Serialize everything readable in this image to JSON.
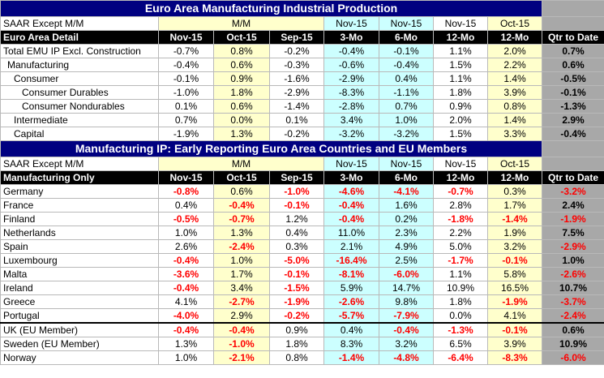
{
  "title1": "Euro Area Manufacturing Industrial Production",
  "title2": "Manufacturing IP: Early Reporting Euro Area Countries and EU Members",
  "sub_header": {
    "label": "SAAR Except M/M",
    "mm": "M/M",
    "c3a": "Nov-15",
    "c3b": "Nov-15",
    "c12a": "Nov-15",
    "c12b": "Oct-15"
  },
  "header1": {
    "label": "Euro Area Detail",
    "cols": [
      "Nov-15",
      "Oct-15",
      "Sep-15",
      "3-Mo",
      "6-Mo",
      "12-Mo",
      "12-Mo",
      "Qtr to Date"
    ]
  },
  "header2": {
    "label": "Manufacturing Only",
    "cols": [
      "Nov-15",
      "Oct-15",
      "Sep-15",
      "3-Mo",
      "6-Mo",
      "12-Mo",
      "12-Mo",
      "Qtr to Date"
    ]
  },
  "section1": [
    {
      "label": "Total EMU IP Excl. Construction",
      "indent": 0,
      "values": [
        "-0.7%",
        "0.8%",
        "-0.2%",
        "-0.4%",
        "-0.1%",
        "1.1%",
        "2.0%",
        "0.7%"
      ],
      "red": [
        false,
        false,
        false,
        false,
        false,
        false,
        false,
        false
      ]
    },
    {
      "label": "Manufacturing",
      "indent": 1,
      "values": [
        "-0.4%",
        "0.6%",
        "-0.3%",
        "-0.6%",
        "-0.4%",
        "1.5%",
        "2.2%",
        "0.6%"
      ],
      "red": [
        false,
        false,
        false,
        false,
        false,
        false,
        false,
        false
      ]
    },
    {
      "label": "Consumer",
      "indent": 2,
      "values": [
        "-0.1%",
        "0.9%",
        "-1.6%",
        "-2.9%",
        "0.4%",
        "1.1%",
        "1.4%",
        "-0.5%"
      ],
      "red": [
        false,
        false,
        false,
        false,
        false,
        false,
        false,
        false
      ]
    },
    {
      "label": "Consumer Durables",
      "indent": 3,
      "values": [
        "-1.0%",
        "1.8%",
        "-2.9%",
        "-8.3%",
        "-1.1%",
        "1.8%",
        "3.9%",
        "-0.1%"
      ],
      "red": [
        false,
        false,
        false,
        false,
        false,
        false,
        false,
        false
      ]
    },
    {
      "label": "Consumer Nondurables",
      "indent": 3,
      "values": [
        "0.1%",
        "0.6%",
        "-1.4%",
        "-2.8%",
        "0.7%",
        "0.9%",
        "0.8%",
        "-1.3%"
      ],
      "red": [
        false,
        false,
        false,
        false,
        false,
        false,
        false,
        false
      ]
    },
    {
      "label": "Intermediate",
      "indent": 2,
      "values": [
        "0.7%",
        "0.0%",
        "0.1%",
        "3.4%",
        "1.0%",
        "2.0%",
        "1.4%",
        "2.9%"
      ],
      "red": [
        false,
        false,
        false,
        false,
        false,
        false,
        false,
        false
      ]
    },
    {
      "label": "Capital",
      "indent": 2,
      "values": [
        "-1.9%",
        "1.3%",
        "-0.2%",
        "-3.2%",
        "-3.2%",
        "1.5%",
        "3.3%",
        "-0.4%"
      ],
      "red": [
        false,
        false,
        false,
        false,
        false,
        false,
        false,
        false
      ]
    }
  ],
  "section2": [
    {
      "label": "Germany",
      "values": [
        "-0.8%",
        "0.6%",
        "-1.0%",
        "-4.6%",
        "-4.1%",
        "-0.7%",
        "0.3%",
        "-3.2%"
      ],
      "red": [
        true,
        false,
        true,
        true,
        true,
        true,
        false,
        true
      ]
    },
    {
      "label": "France",
      "values": [
        "0.4%",
        "-0.4%",
        "-0.1%",
        "-0.4%",
        "1.6%",
        "2.8%",
        "1.7%",
        "2.4%"
      ],
      "red": [
        false,
        true,
        true,
        true,
        false,
        false,
        false,
        false
      ]
    },
    {
      "label": "Finland",
      "values": [
        "-0.5%",
        "-0.7%",
        "1.2%",
        "-0.4%",
        "0.2%",
        "-1.8%",
        "-1.4%",
        "-1.9%"
      ],
      "red": [
        true,
        true,
        false,
        true,
        false,
        true,
        true,
        true
      ]
    },
    {
      "label": "Netherlands",
      "values": [
        "1.0%",
        "1.3%",
        "0.4%",
        "11.0%",
        "2.3%",
        "2.2%",
        "1.9%",
        "7.5%"
      ],
      "red": [
        false,
        false,
        false,
        false,
        false,
        false,
        false,
        false
      ]
    },
    {
      "label": "Spain",
      "values": [
        "2.6%",
        "-2.4%",
        "0.3%",
        "2.1%",
        "4.9%",
        "5.0%",
        "3.2%",
        "-2.9%"
      ],
      "red": [
        false,
        true,
        false,
        false,
        false,
        false,
        false,
        true
      ]
    },
    {
      "label": "Luxembourg",
      "values": [
        "-0.4%",
        "1.0%",
        "-5.0%",
        "-16.4%",
        "2.5%",
        "-1.7%",
        "-0.1%",
        "1.0%"
      ],
      "red": [
        true,
        false,
        true,
        true,
        false,
        true,
        true,
        false
      ]
    },
    {
      "label": "Malta",
      "values": [
        "-3.6%",
        "1.7%",
        "-0.1%",
        "-8.1%",
        "-6.0%",
        "1.1%",
        "5.8%",
        "-2.6%"
      ],
      "red": [
        true,
        false,
        true,
        true,
        true,
        false,
        false,
        true
      ]
    },
    {
      "label": "Ireland",
      "values": [
        "-0.4%",
        "3.4%",
        "-1.5%",
        "5.9%",
        "14.7%",
        "10.9%",
        "16.5%",
        "10.7%"
      ],
      "red": [
        true,
        false,
        true,
        false,
        false,
        false,
        false,
        false
      ]
    },
    {
      "label": "Greece",
      "values": [
        "4.1%",
        "-2.7%",
        "-1.9%",
        "-2.6%",
        "9.8%",
        "1.8%",
        "-1.9%",
        "-3.7%"
      ],
      "red": [
        false,
        true,
        true,
        true,
        false,
        false,
        true,
        true
      ]
    },
    {
      "label": "Portugal",
      "values": [
        "-4.0%",
        "2.9%",
        "-0.2%",
        "-5.7%",
        "-7.9%",
        "0.0%",
        "4.1%",
        "-2.4%"
      ],
      "red": [
        true,
        false,
        true,
        true,
        true,
        false,
        false,
        true
      ]
    }
  ],
  "section3": [
    {
      "label": "UK (EU Member)",
      "values": [
        "-0.4%",
        "-0.4%",
        "0.9%",
        "0.4%",
        "-0.4%",
        "-1.3%",
        "-0.1%",
        "0.6%"
      ],
      "red": [
        true,
        true,
        false,
        false,
        true,
        true,
        true,
        false
      ]
    },
    {
      "label": "Sweden (EU Member)",
      "values": [
        "1.3%",
        "-1.0%",
        "1.8%",
        "8.3%",
        "3.2%",
        "6.5%",
        "3.9%",
        "10.9%"
      ],
      "red": [
        false,
        true,
        false,
        false,
        false,
        false,
        false,
        false
      ]
    },
    {
      "label": "Norway",
      "values": [
        "1.0%",
        "-2.1%",
        "0.8%",
        "-1.4%",
        "-4.8%",
        "-6.4%",
        "-8.3%",
        "-6.0%"
      ],
      "red": [
        false,
        true,
        false,
        true,
        true,
        true,
        true,
        true
      ]
    }
  ],
  "colors": {
    "navy": "#000080",
    "header": "#000000",
    "yellow": "#ffffcc",
    "cyan": "#ccffff",
    "grey": "#a8a8a8",
    "negative": "#ff0000"
  }
}
